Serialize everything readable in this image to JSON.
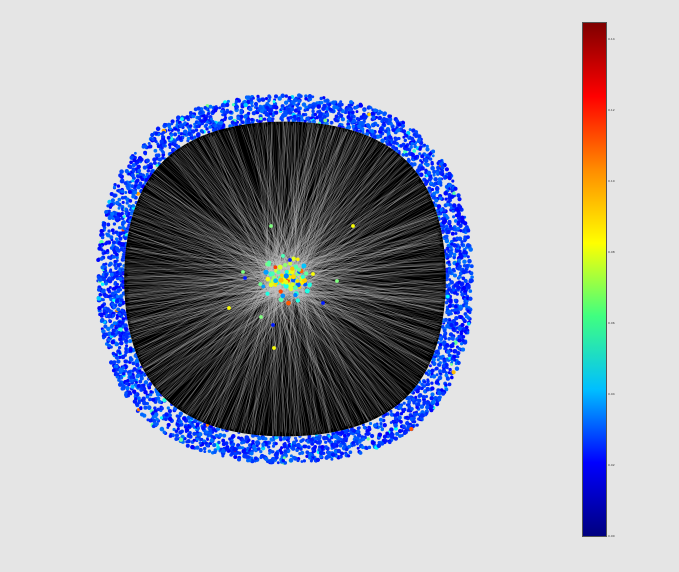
{
  "figure": {
    "type": "network-graph",
    "layout": "radial / circular cloud",
    "node_groups": [
      {
        "name": "outer ring",
        "approx_count": 3000,
        "dominant_color": "#1a2fd6"
      },
      {
        "name": "central core",
        "approx_count": 90,
        "dominant_color": "#ffd21a"
      }
    ],
    "edge_color": "#c8c8c8",
    "background_inside": "#000000"
  },
  "colorbar": {
    "colormap": "jet",
    "stops": [
      "#00007f",
      "#0000ff",
      "#00bfff",
      "#40ff80",
      "#ffff00",
      "#ff8c00",
      "#ff0000",
      "#7f0000"
    ],
    "ticks": [
      "0.14",
      "0.12",
      "0.10",
      "0.08",
      "0.06",
      "0.04",
      "0.02",
      "0.00"
    ]
  },
  "chart_data": {
    "type": "network",
    "title": "",
    "colorbar_range": [
      0.0,
      0.14
    ],
    "colorbar_ticks": [
      0.0,
      0.02,
      0.04,
      0.06,
      0.08,
      0.1,
      0.12,
      0.14
    ]
  }
}
